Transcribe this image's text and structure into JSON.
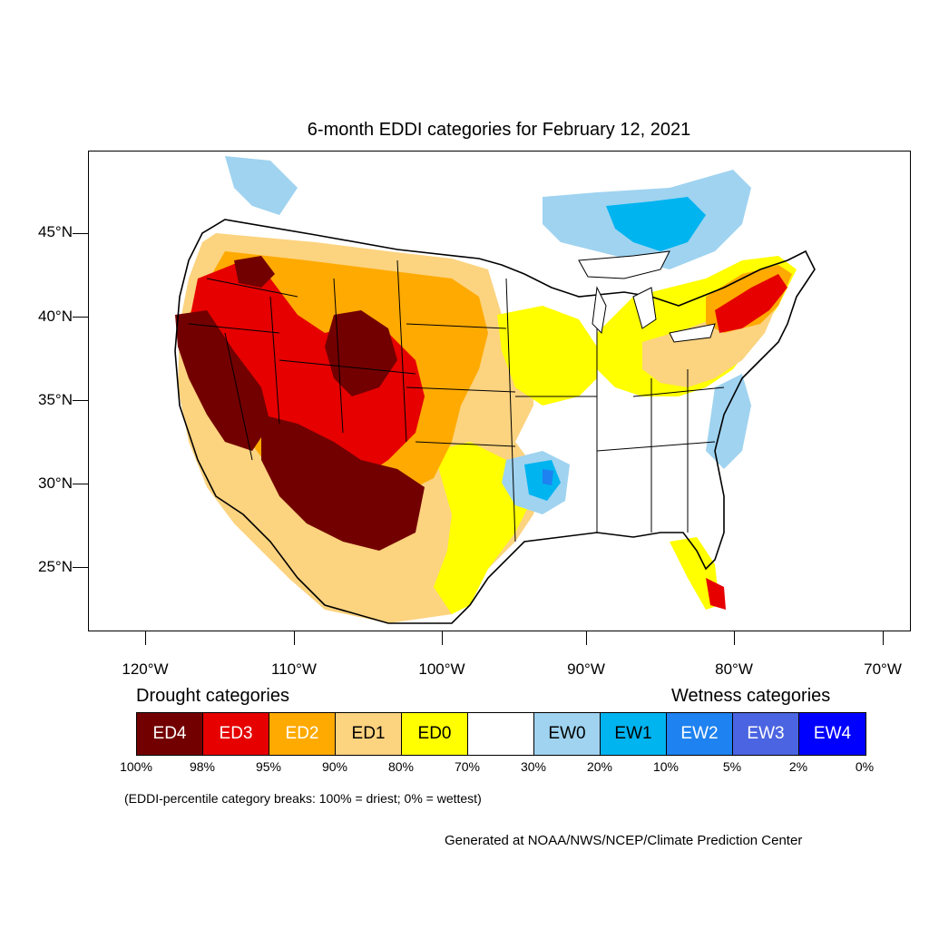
{
  "title": "6-month EDDI categories for February 12, 2021",
  "lat_labels": [
    "45°N",
    "40°N",
    "35°N",
    "30°N",
    "25°N"
  ],
  "lon_labels": [
    "120°W",
    "110°W",
    "100°W",
    "90°W",
    "80°W",
    "70°W"
  ],
  "legend": {
    "drought_heading": "Drought categories",
    "wetness_heading": "Wetness categories",
    "categories": [
      {
        "label": "ED4",
        "color": "#730000",
        "text_color": "#ffffff"
      },
      {
        "label": "ED3",
        "color": "#e60000",
        "text_color": "#ffffff"
      },
      {
        "label": "ED2",
        "color": "#ffaa00",
        "text_color": "#ffffff"
      },
      {
        "label": "ED1",
        "color": "#fcd37f",
        "text_color": "#000000"
      },
      {
        "label": "ED0",
        "color": "#ffff00",
        "text_color": "#000000"
      },
      {
        "label": "",
        "color": "#ffffff",
        "text_color": "#000000"
      },
      {
        "label": "EW0",
        "color": "#9fd3f0",
        "text_color": "#000000"
      },
      {
        "label": "EW1",
        "color": "#00b4f0",
        "text_color": "#000000"
      },
      {
        "label": "EW2",
        "color": "#1e82f0",
        "text_color": "#ffffff"
      },
      {
        "label": "EW3",
        "color": "#4b64e1",
        "text_color": "#ffffff"
      },
      {
        "label": "EW4",
        "color": "#0000ff",
        "text_color": "#ffffff"
      }
    ],
    "percentiles": [
      "100%",
      "98%",
      "95%",
      "90%",
      "80%",
      "70%",
      "30%",
      "20%",
      "10%",
      "5%",
      "2%",
      "0%"
    ]
  },
  "note": "(EDDI-percentile category breaks: 100% = driest; 0% = wettest)",
  "credit": "Generated at NOAA/NWS/NCEP/Climate Prediction Center"
}
